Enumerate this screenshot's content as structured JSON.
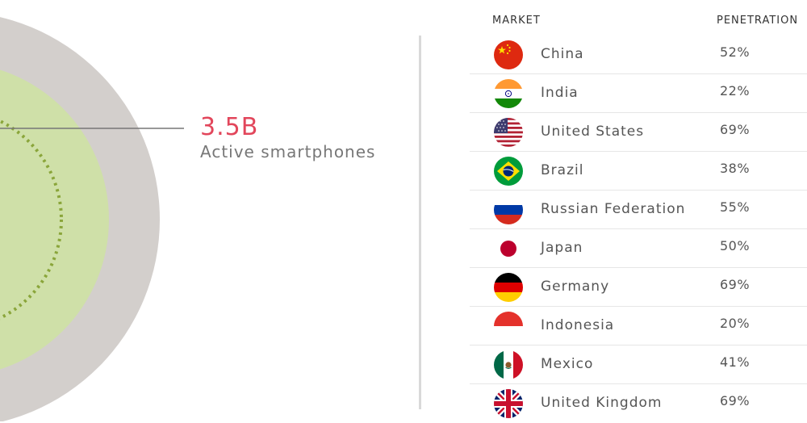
{
  "stat": {
    "value": "3.5B",
    "label": "Active smartphones"
  },
  "table": {
    "header_market": "MARKET",
    "header_penetration": "PENETRATION",
    "rows": [
      {
        "country": "China",
        "penetration": "52%",
        "flag_icon": "china-flag-icon"
      },
      {
        "country": "India",
        "penetration": "22%",
        "flag_icon": "india-flag-icon"
      },
      {
        "country": "United States",
        "penetration": "69%",
        "flag_icon": "united-states-flag-icon"
      },
      {
        "country": "Brazil",
        "penetration": "38%",
        "flag_icon": "brazil-flag-icon"
      },
      {
        "country": "Russian Federation",
        "penetration": "55%",
        "flag_icon": "russia-flag-icon"
      },
      {
        "country": "Japan",
        "penetration": "50%",
        "flag_icon": "japan-flag-icon"
      },
      {
        "country": "Germany",
        "penetration": "69%",
        "flag_icon": "germany-flag-icon"
      },
      {
        "country": "Indonesia",
        "penetration": "20%",
        "flag_icon": "indonesia-flag-icon"
      },
      {
        "country": "Mexico",
        "penetration": "41%",
        "flag_icon": "mexico-flag-icon"
      },
      {
        "country": "United Kingdom",
        "penetration": "69%",
        "flag_icon": "united-kingdom-flag-icon"
      }
    ]
  },
  "colors": {
    "accent": "#e2465b",
    "outer_ring": "#d3cfcc",
    "inner_circle": "#cfe0a8",
    "dotted_ring": "#8aa53a",
    "divider": "#d9d9d9"
  }
}
